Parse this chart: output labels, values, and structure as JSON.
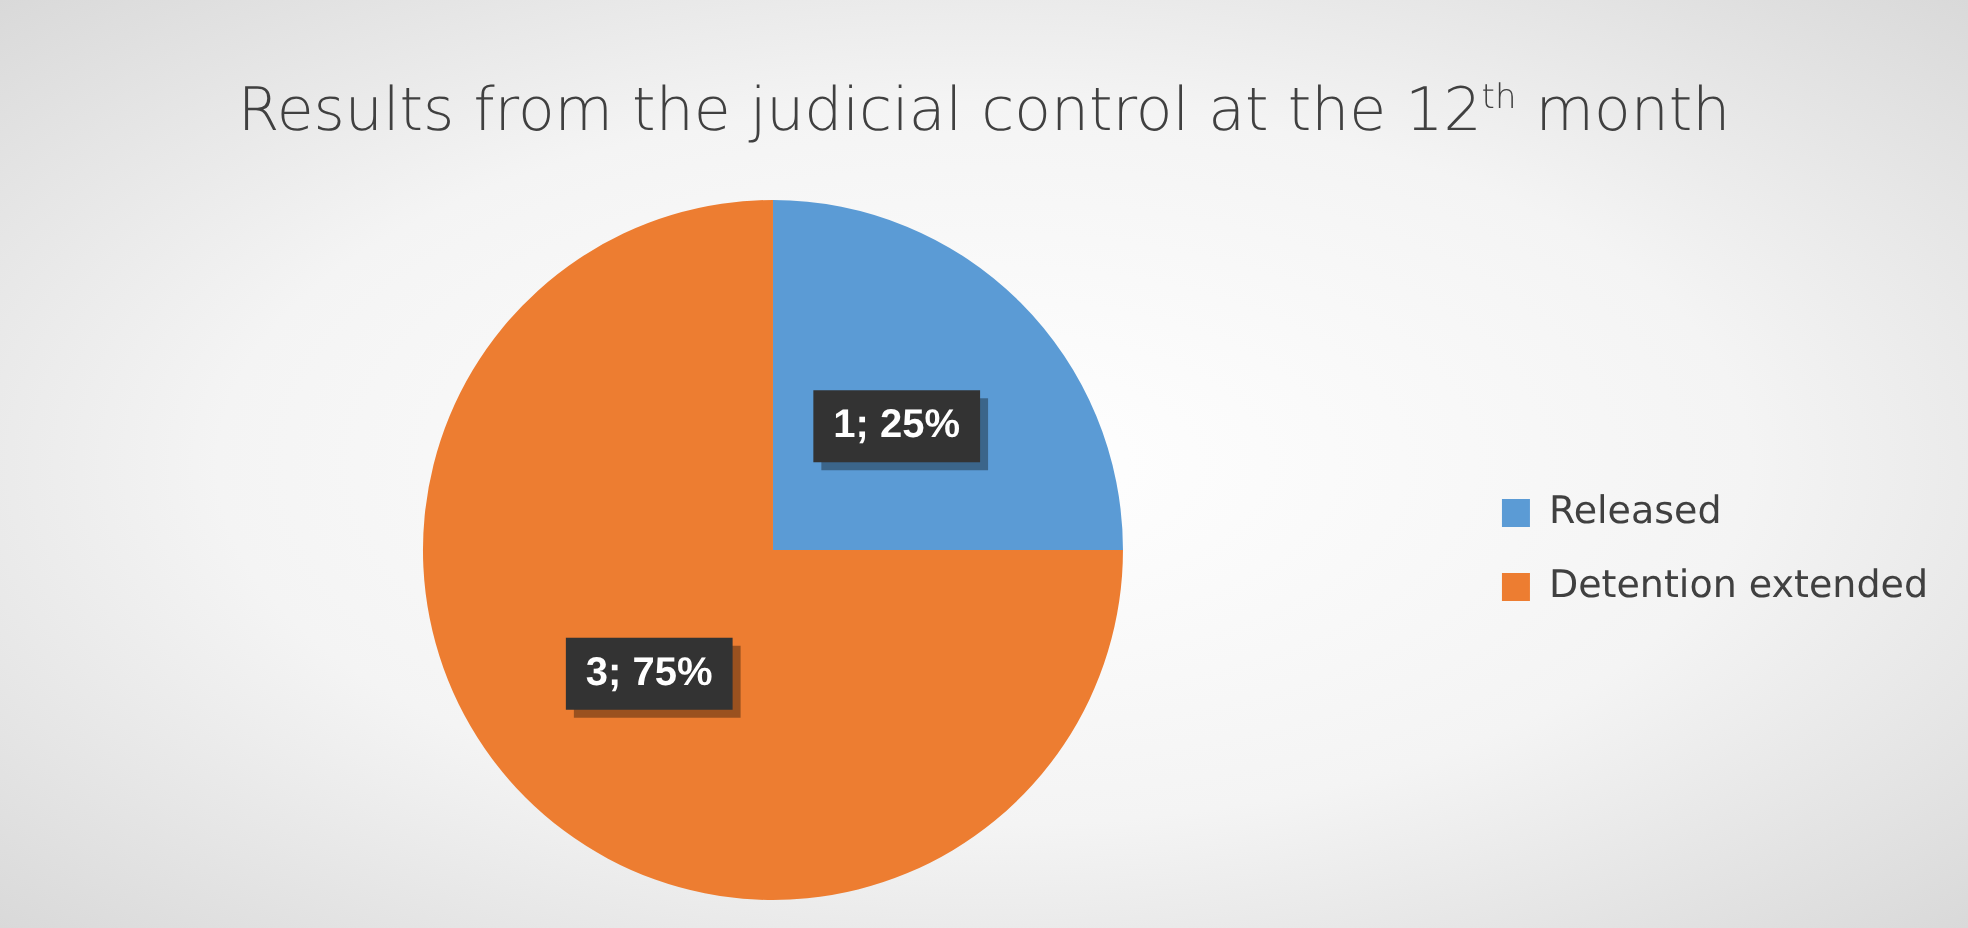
{
  "chart_data": {
    "type": "pie",
    "title": "Results from the judicial control at the 12$^{th}$ month",
    "categories": [
      "Released",
      "Detention extended"
    ],
    "values": [
      1,
      3
    ],
    "colors": [
      "#5b9bd5",
      "#ed7d31"
    ],
    "value_labels": [
      "1; 25%",
      "3; 75%"
    ],
    "legend": "right"
  }
}
